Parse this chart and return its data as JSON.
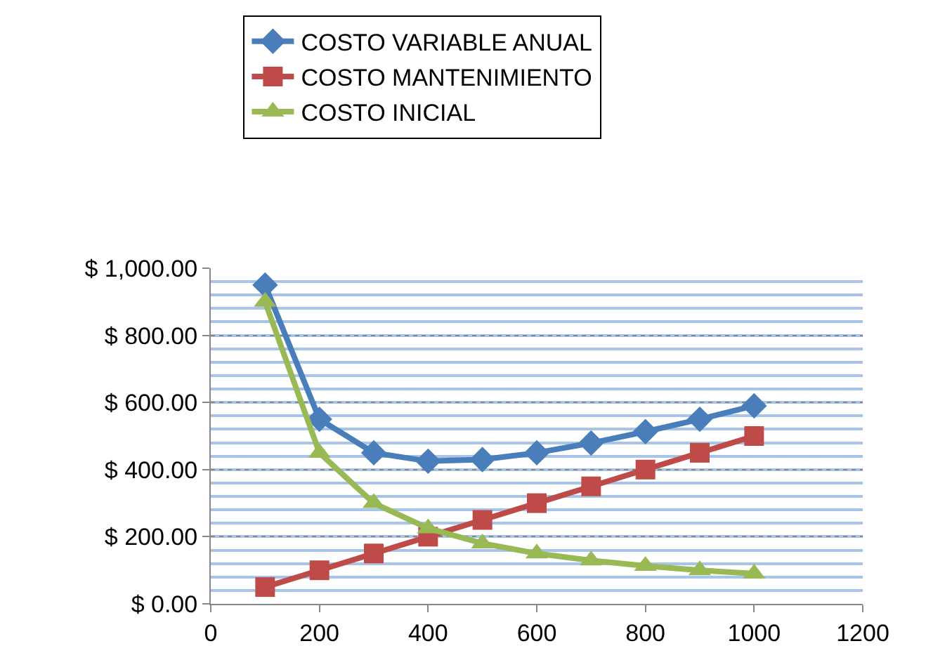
{
  "chart_data": {
    "type": "line",
    "x": [
      100,
      200,
      300,
      400,
      500,
      600,
      700,
      800,
      900,
      1000
    ],
    "series": [
      {
        "name": "COSTO VARIABLE ANUAL",
        "color": "#4a7ebb",
        "marker": "diamond",
        "values": [
          950,
          550,
          450,
          425,
          430,
          450,
          479,
          513,
          550,
          590
        ]
      },
      {
        "name": "COSTO MANTENIMIENTO",
        "color": "#be4b48",
        "marker": "square",
        "values": [
          50,
          100,
          150,
          200,
          250,
          300,
          350,
          400,
          450,
          500
        ]
      },
      {
        "name": "COSTO INICIAL",
        "color": "#98b954",
        "marker": "triangle",
        "values": [
          900,
          450,
          300,
          225,
          180,
          150,
          129,
          113,
          100,
          90
        ]
      }
    ],
    "xlim": [
      0,
      1200
    ],
    "xticks": [
      0,
      200,
      400,
      600,
      800,
      1000,
      1200
    ],
    "ylim": [
      0,
      1000
    ],
    "yticks": [
      {
        "value": 0,
        "label": "$ 0.00"
      },
      {
        "value": 200,
        "label": "$ 200.00"
      },
      {
        "value": 400,
        "label": "$ 400.00"
      },
      {
        "value": 600,
        "label": "$ 600.00"
      },
      {
        "value": 800,
        "label": "$ 800.00"
      },
      {
        "value": 1000,
        "label": "$ 1,000.00"
      }
    ],
    "grid": "y",
    "legend": "top",
    "line_style": "solid"
  }
}
